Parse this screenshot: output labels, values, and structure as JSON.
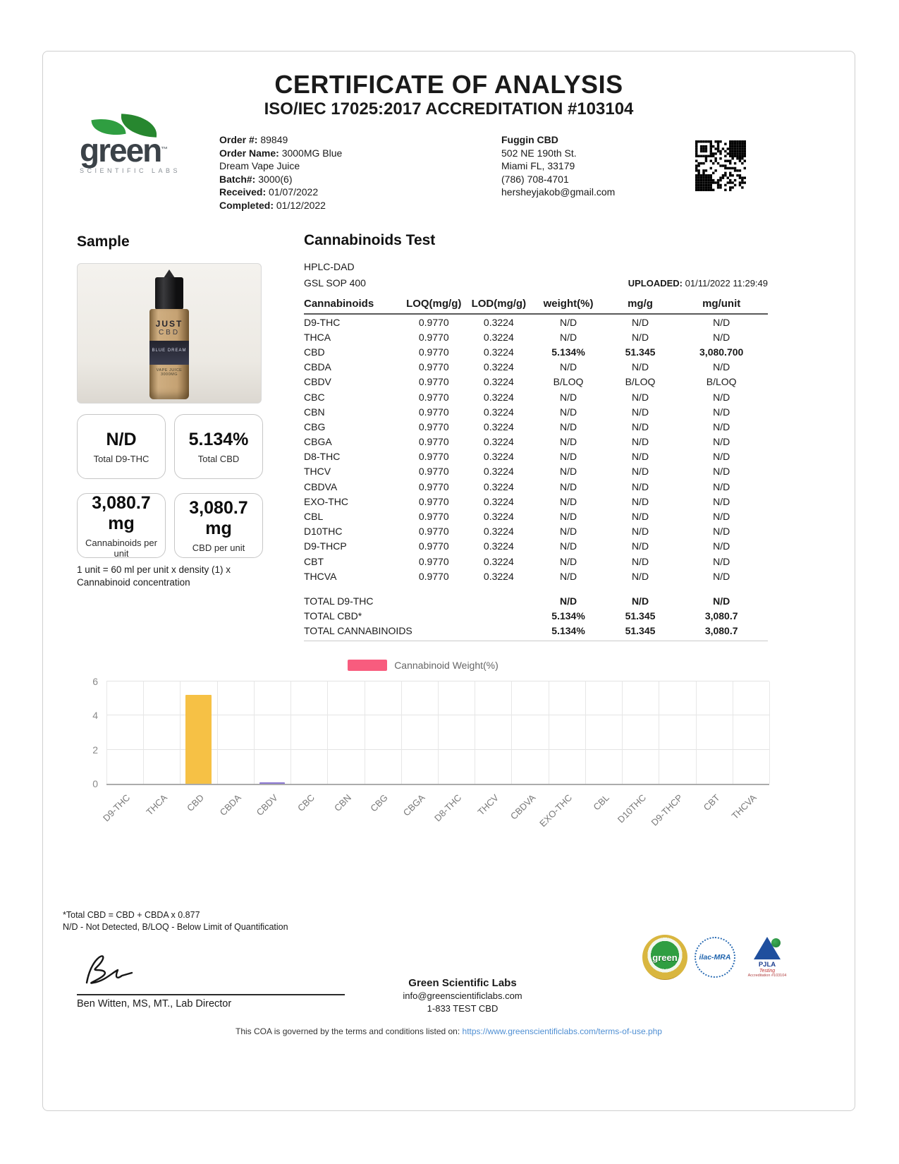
{
  "page": {
    "title": "CERTIFICATE OF ANALYSIS",
    "subtitle": "ISO/IEC 17025:2017 ACCREDITATION #103104"
  },
  "lab": {
    "logo_text": "green",
    "logo_tm": "™",
    "logo_sub": "SCIENTIFIC LABS"
  },
  "order": {
    "fields": [
      {
        "label": "Order #:",
        "value": "89849"
      },
      {
        "label": "Order Name:",
        "value": "3000MG Blue Dream Vape Juice"
      },
      {
        "label": "Batch#:",
        "value": "3000(6)"
      },
      {
        "label": "Received:",
        "value": "01/07/2022"
      },
      {
        "label": "Completed:",
        "value": "01/12/2022"
      }
    ]
  },
  "client": {
    "name": "Fuggin CBD",
    "lines": [
      "502 NE 190th St.",
      "Miami FL, 33179",
      "(786) 708-4701",
      "hersheyjakob@gmail.com"
    ]
  },
  "sample": {
    "heading": "Sample",
    "bottle": {
      "brand_line1": "JUST",
      "brand_line2": "CBD",
      "flavor": "BLUE DREAM",
      "size": "VAPE JUICE 3000MG"
    },
    "cards": [
      {
        "value": "N/D",
        "label": "Total D9-THC"
      },
      {
        "value": "5.134%",
        "label": "Total CBD"
      },
      {
        "value": "3,080.7 mg",
        "label": "Cannabinoids per unit"
      },
      {
        "value": "3,080.7 mg",
        "label": "CBD per unit"
      }
    ],
    "note": "1 unit = 60 ml per unit x density (1) x Cannabinoid concentration"
  },
  "test": {
    "heading": "Cannabinoids Test",
    "method": "HPLC-DAD",
    "sop": "GSL SOP 400",
    "uploaded_label": "UPLOADED:",
    "uploaded_value": "01/11/2022 11:29:49",
    "columns": [
      "Cannabinoids",
      "LOQ(mg/g)",
      "LOD(mg/g)",
      "weight(%)",
      "mg/g",
      "mg/unit"
    ],
    "rows": [
      {
        "name": "D9-THC",
        "loq": "0.9770",
        "lod": "0.3224",
        "weight": "N/D",
        "mgg": "N/D",
        "mgunit": "N/D",
        "bold": false
      },
      {
        "name": "THCA",
        "loq": "0.9770",
        "lod": "0.3224",
        "weight": "N/D",
        "mgg": "N/D",
        "mgunit": "N/D",
        "bold": false
      },
      {
        "name": "CBD",
        "loq": "0.9770",
        "lod": "0.3224",
        "weight": "5.134%",
        "mgg": "51.345",
        "mgunit": "3,080.700",
        "bold": true
      },
      {
        "name": "CBDA",
        "loq": "0.9770",
        "lod": "0.3224",
        "weight": "N/D",
        "mgg": "N/D",
        "mgunit": "N/D",
        "bold": false
      },
      {
        "name": "CBDV",
        "loq": "0.9770",
        "lod": "0.3224",
        "weight": "B/LOQ",
        "mgg": "B/LOQ",
        "mgunit": "B/LOQ",
        "bold": false
      },
      {
        "name": "CBC",
        "loq": "0.9770",
        "lod": "0.3224",
        "weight": "N/D",
        "mgg": "N/D",
        "mgunit": "N/D",
        "bold": false
      },
      {
        "name": "CBN",
        "loq": "0.9770",
        "lod": "0.3224",
        "weight": "N/D",
        "mgg": "N/D",
        "mgunit": "N/D",
        "bold": false
      },
      {
        "name": "CBG",
        "loq": "0.9770",
        "lod": "0.3224",
        "weight": "N/D",
        "mgg": "N/D",
        "mgunit": "N/D",
        "bold": false
      },
      {
        "name": "CBGA",
        "loq": "0.9770",
        "lod": "0.3224",
        "weight": "N/D",
        "mgg": "N/D",
        "mgunit": "N/D",
        "bold": false
      },
      {
        "name": "D8-THC",
        "loq": "0.9770",
        "lod": "0.3224",
        "weight": "N/D",
        "mgg": "N/D",
        "mgunit": "N/D",
        "bold": false
      },
      {
        "name": "THCV",
        "loq": "0.9770",
        "lod": "0.3224",
        "weight": "N/D",
        "mgg": "N/D",
        "mgunit": "N/D",
        "bold": false
      },
      {
        "name": "CBDVA",
        "loq": "0.9770",
        "lod": "0.3224",
        "weight": "N/D",
        "mgg": "N/D",
        "mgunit": "N/D",
        "bold": false
      },
      {
        "name": "EXO-THC",
        "loq": "0.9770",
        "lod": "0.3224",
        "weight": "N/D",
        "mgg": "N/D",
        "mgunit": "N/D",
        "bold": false
      },
      {
        "name": "CBL",
        "loq": "0.9770",
        "lod": "0.3224",
        "weight": "N/D",
        "mgg": "N/D",
        "mgunit": "N/D",
        "bold": false
      },
      {
        "name": "D10THC",
        "loq": "0.9770",
        "lod": "0.3224",
        "weight": "N/D",
        "mgg": "N/D",
        "mgunit": "N/D",
        "bold": false
      },
      {
        "name": "D9-THCP",
        "loq": "0.9770",
        "lod": "0.3224",
        "weight": "N/D",
        "mgg": "N/D",
        "mgunit": "N/D",
        "bold": false
      },
      {
        "name": "CBT",
        "loq": "0.9770",
        "lod": "0.3224",
        "weight": "N/D",
        "mgg": "N/D",
        "mgunit": "N/D",
        "bold": false
      },
      {
        "name": "THCVA",
        "loq": "0.9770",
        "lod": "0.3224",
        "weight": "N/D",
        "mgg": "N/D",
        "mgunit": "N/D",
        "bold": false
      }
    ],
    "totals": [
      {
        "name": "TOTAL D9-THC",
        "weight": "N/D",
        "mgg": "N/D",
        "mgunit": "N/D"
      },
      {
        "name": "TOTAL CBD*",
        "weight": "5.134%",
        "mgg": "51.345",
        "mgunit": "3,080.7"
      },
      {
        "name": "TOTAL CANNABINOIDS",
        "weight": "5.134%",
        "mgg": "51.345",
        "mgunit": "3,080.7"
      }
    ]
  },
  "chart_data": {
    "type": "bar",
    "title": "",
    "legend_label": "Cannabinoid Weight(%)",
    "legend_color": "#f85c7e",
    "legend_position": "top",
    "categories": [
      "D9-THC",
      "THCA",
      "CBD",
      "CBDA",
      "CBDV",
      "CBC",
      "CBN",
      "CBG",
      "CBGA",
      "D8-THC",
      "THCV",
      "CBDVA",
      "EXO-THC",
      "CBL",
      "D10THC",
      "D9-THCP",
      "CBT",
      "THCVA"
    ],
    "values": [
      0,
      0,
      5.134,
      0,
      0.05,
      0,
      0,
      0,
      0,
      0,
      0,
      0,
      0,
      0,
      0,
      0,
      0,
      0
    ],
    "bar_colors": {
      "CBD": "#f6c145",
      "CBDV": "#8b77d1"
    },
    "xlabel": "",
    "ylabel": "",
    "ylim": [
      0,
      6
    ],
    "yticks": [
      6,
      4,
      2,
      0
    ],
    "grid": true
  },
  "footnotes": {
    "line1": "*Total CBD = CBD + CBDA x 0.877",
    "line2": "N/D - Not Detected, B/LOQ - Below Limit of Quantification"
  },
  "footer": {
    "signer": "Ben Witten, MS, MT., Lab Director",
    "lab_name": "Green Scientific Labs",
    "email": "info@greenscientificlabs.com",
    "phone": "1-833 TEST CBD",
    "terms_prefix": "This COA is governed by the terms and conditions listed on:",
    "terms_url": "https://www.greenscientificlabs.com/terms-of-use.php",
    "badges": {
      "seal_text": "green",
      "ilac_text": "ilac-MRA",
      "pjla_name": "PJLA",
      "pjla_sub": "Testing",
      "pjla_acc": "Accreditation #103104"
    }
  }
}
